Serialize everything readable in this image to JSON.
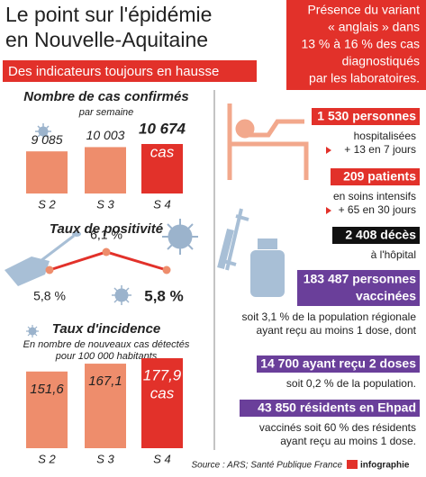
{
  "header": {
    "title_lines": [
      "Le point sur l'épidémie",
      "en Nouvelle-Aquitaine"
    ],
    "banner": "Des indicateurs toujours en hausse"
  },
  "variant": {
    "lines": [
      "Présence du variant",
      "« anglais » dans",
      "13 % à 16 % des cas",
      "diagnostiqués",
      "par les laboratoires."
    ]
  },
  "cases": {
    "title": "Nombre de cas confirmés",
    "subtitle": "par semaine",
    "categories": [
      "S 2",
      "S 3",
      "S 4"
    ],
    "values": [
      9085,
      10003,
      10674
    ],
    "value_labels": [
      "9 085",
      "10 003",
      "10 674"
    ],
    "unit": "cas"
  },
  "positivity": {
    "title": "Taux de positivité",
    "values": [
      5.8,
      6.1,
      5.8
    ],
    "value_labels": [
      "5,8 %",
      "6,1 %",
      "5,8 %"
    ]
  },
  "incidence": {
    "title": "Taux d'incidence",
    "subtitle_lines": [
      "En nombre de nouveaux cas détectés",
      "pour 100 000 habitants"
    ],
    "categories": [
      "S 2",
      "S 3",
      "S 4"
    ],
    "values": [
      151.6,
      167.1,
      177.9
    ],
    "value_labels": [
      "151,6",
      "167,1",
      "177,9"
    ],
    "unit": "cas"
  },
  "hospital": {
    "headline": "1 530 personnes",
    "lines": [
      "hospitalisées",
      "+ 13 en 7 jours"
    ]
  },
  "icu": {
    "headline": "209 patients",
    "lines": [
      "en soins intensifs",
      "+ 65 en 30 jours"
    ]
  },
  "deaths": {
    "headline": "2 408 décès",
    "lines": [
      "à l'hôpital"
    ]
  },
  "vaccinated": {
    "headline_lines": [
      "183 487 personnes",
      "vaccinées"
    ],
    "lines": [
      "soit 3,1 % de la population régionale",
      "ayant reçu au moins 1 dose, dont"
    ]
  },
  "two_doses": {
    "headline": "14 700 ayant reçu 2 doses",
    "lines": [
      "soit 0,2 % de la population."
    ]
  },
  "ehpad": {
    "headline": "43 850 résidents en Ehpad",
    "lines": [
      "vaccinés soit 60 % des résidents",
      "ayant reçu au moins 1 dose."
    ]
  },
  "footer": {
    "source": "Source : ARS; Santé Publique France",
    "credit": "infographie"
  }
}
